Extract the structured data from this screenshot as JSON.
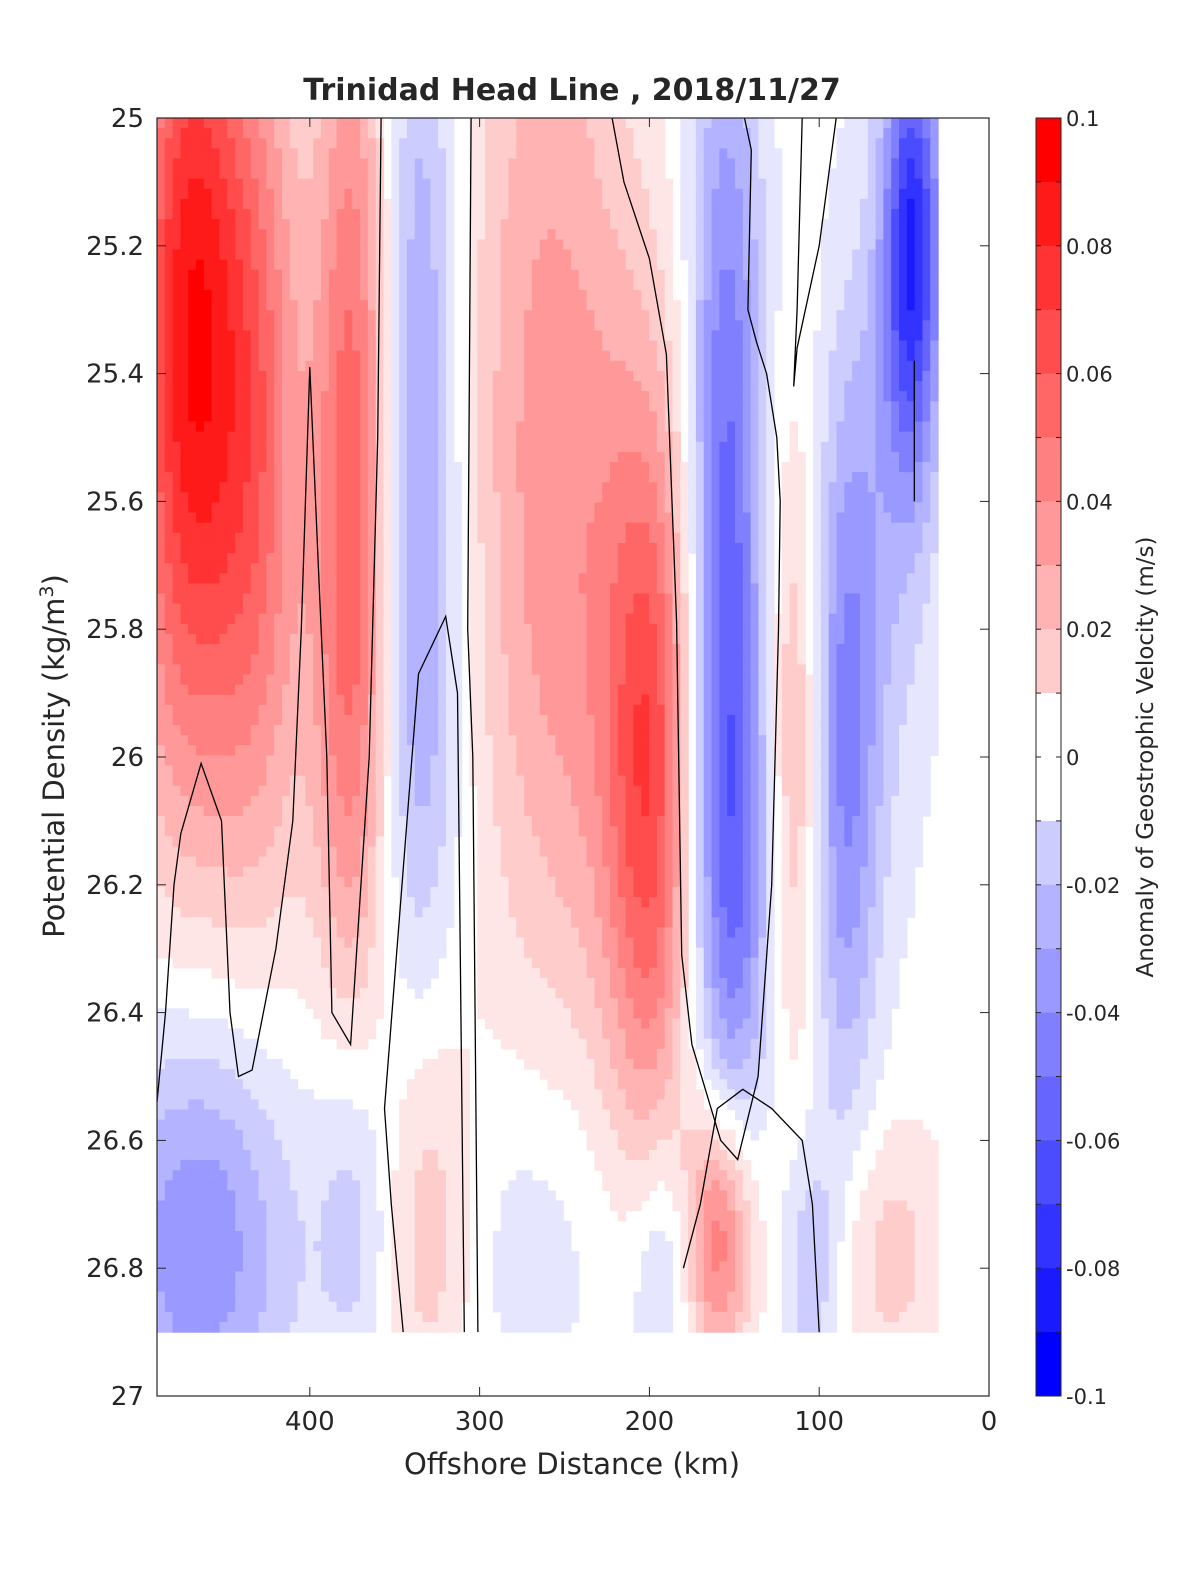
{
  "chart_data": {
    "type": "heatmap",
    "subtype": "filled-contour",
    "title": "Trinidad Head Line , 2018/11/27",
    "xlabel": "Offshore Distance (km)",
    "ylabel_main": "Potential Density (kg/m",
    "ylabel_sup": "3",
    "ylabel_close": ")",
    "colorbar_label": "Anomaly of Geostrophic Velocity (m/s)",
    "x_ticks": [
      "400",
      "300",
      "200",
      "100",
      "0"
    ],
    "x_tick_values": [
      400,
      300,
      200,
      100,
      0
    ],
    "xlim": [
      490,
      0
    ],
    "x_reversed": true,
    "y_ticks": [
      "25",
      "25.2",
      "25.4",
      "25.6",
      "25.8",
      "26",
      "26.2",
      "26.4",
      "26.6",
      "26.8",
      "27"
    ],
    "y_tick_values": [
      25,
      25.2,
      25.4,
      25.6,
      25.8,
      26,
      26.2,
      26.4,
      26.6,
      26.8,
      27
    ],
    "ylim": [
      25,
      27
    ],
    "y_reversed": true,
    "colorbar_ticks": [
      "0.1",
      "0.08",
      "0.06",
      "0.04",
      "0.02",
      "0",
      "-0.02",
      "-0.04",
      "-0.06",
      "-0.08",
      "-0.1"
    ],
    "colorbar_tick_values": [
      0.1,
      0.08,
      0.06,
      0.04,
      0.02,
      0,
      -0.02,
      -0.04,
      -0.06,
      -0.08,
      -0.1
    ],
    "clim": [
      -0.1,
      0.1
    ],
    "contour_step": 0.01,
    "colormap": "blue-white-red",
    "colors": {
      "positive": "#ff0000",
      "negative": "#0000ff",
      "neutral": "#ffffff",
      "zero_contour": "#000000"
    },
    "data_bottom_density": 26.9,
    "grid": false,
    "features": [
      {
        "x": 470,
        "y": 25.25,
        "value": 0.075,
        "sx": 22,
        "sy": 0.45
      },
      {
        "x": 460,
        "y": 25.7,
        "value": 0.03,
        "sx": 45,
        "sy": 0.45
      },
      {
        "x": 430,
        "y": 25.4,
        "value": 0.035,
        "sx": 18,
        "sy": 0.5
      },
      {
        "x": 375,
        "y": 25.4,
        "value": 0.05,
        "sx": 16,
        "sy": 0.5
      },
      {
        "x": 375,
        "y": 26.0,
        "value": 0.025,
        "sx": 16,
        "sy": 0.35
      },
      {
        "x": 335,
        "y": 25.4,
        "value": -0.035,
        "sx": 16,
        "sy": 0.55
      },
      {
        "x": 335,
        "y": 26.0,
        "value": -0.015,
        "sx": 20,
        "sy": 0.4
      },
      {
        "x": 260,
        "y": 25.3,
        "value": 0.03,
        "sx": 35,
        "sy": 0.55
      },
      {
        "x": 230,
        "y": 25.9,
        "value": 0.025,
        "sx": 45,
        "sy": 0.45
      },
      {
        "x": 200,
        "y": 26.05,
        "value": 0.055,
        "sx": 18,
        "sy": 0.4
      },
      {
        "x": 155,
        "y": 25.6,
        "value": -0.06,
        "sx": 16,
        "sy": 0.55
      },
      {
        "x": 150,
        "y": 26.2,
        "value": -0.035,
        "sx": 18,
        "sy": 0.3
      },
      {
        "x": 115,
        "y": 26.0,
        "value": 0.03,
        "sx": 12,
        "sy": 0.35
      },
      {
        "x": 85,
        "y": 26.0,
        "value": -0.045,
        "sx": 14,
        "sy": 0.4
      },
      {
        "x": 45,
        "y": 25.2,
        "value": -0.08,
        "sx": 12,
        "sy": 0.25
      },
      {
        "x": 60,
        "y": 25.6,
        "value": -0.02,
        "sx": 20,
        "sy": 0.4
      },
      {
        "x": 465,
        "y": 26.75,
        "value": -0.045,
        "sx": 40,
        "sy": 0.25
      },
      {
        "x": 330,
        "y": 26.7,
        "value": 0.025,
        "sx": 18,
        "sy": 0.25
      },
      {
        "x": 375,
        "y": 26.7,
        "value": -0.02,
        "sx": 15,
        "sy": 0.2
      },
      {
        "x": 160,
        "y": 26.75,
        "value": 0.06,
        "sx": 15,
        "sy": 0.15
      },
      {
        "x": 265,
        "y": 26.75,
        "value": -0.012,
        "sx": 35,
        "sy": 0.2
      },
      {
        "x": 190,
        "y": 26.8,
        "value": -0.025,
        "sx": 15,
        "sy": 0.15
      },
      {
        "x": 60,
        "y": 26.78,
        "value": 0.02,
        "sx": 25,
        "sy": 0.15
      },
      {
        "x": 105,
        "y": 26.8,
        "value": -0.025,
        "sx": 12,
        "sy": 0.15
      }
    ],
    "zero_contours": [
      [
        [
          490,
          26.54
        ],
        [
          485,
          26.4
        ],
        [
          480,
          26.2
        ],
        [
          476,
          26.12
        ],
        [
          464,
          26.01
        ],
        [
          452,
          26.1
        ],
        [
          447,
          26.4
        ],
        [
          442,
          26.5
        ],
        [
          434,
          26.49
        ],
        [
          420,
          26.3
        ],
        [
          410,
          26.1
        ],
        [
          405,
          25.8
        ],
        [
          400,
          25.39
        ],
        [
          395,
          25.7
        ],
        [
          390,
          26.0
        ],
        [
          387,
          26.4
        ],
        [
          376,
          26.45
        ],
        [
          365,
          26.0
        ],
        [
          360,
          25.5
        ],
        [
          358,
          25.0
        ]
      ],
      [
        [
          345,
          26.9
        ],
        [
          352,
          26.7
        ],
        [
          356,
          26.55
        ],
        [
          336,
          25.87
        ],
        [
          320,
          25.78
        ],
        [
          313,
          25.9
        ],
        [
          309,
          26.9
        ]
      ],
      [
        [
          301,
          26.9
        ],
        [
          304,
          26.0
        ],
        [
          307,
          25.8
        ],
        [
          305,
          25.0
        ]
      ],
      [
        [
          222,
          25.0
        ],
        [
          215,
          25.1
        ],
        [
          200,
          25.22
        ],
        [
          190,
          25.37
        ],
        [
          184,
          25.79
        ],
        [
          181,
          26.31
        ],
        [
          175,
          26.45
        ],
        [
          158,
          26.6
        ],
        [
          148,
          26.63
        ],
        [
          136,
          26.5
        ],
        [
          128,
          26.2
        ],
        [
          124,
          25.8
        ],
        [
          123,
          25.6
        ],
        [
          125,
          25.5
        ],
        [
          131,
          25.4
        ],
        [
          137,
          25.35
        ],
        [
          142,
          25.3
        ],
        [
          140,
          25.05
        ],
        [
          144,
          25.0
        ]
      ],
      [
        [
          110,
          25.0
        ],
        [
          113,
          25.3
        ],
        [
          115,
          25.42
        ],
        [
          113,
          25.36
        ],
        [
          100,
          25.2
        ],
        [
          90,
          25.0
        ]
      ],
      [
        [
          100,
          26.9
        ],
        [
          104,
          26.7
        ],
        [
          110,
          26.6
        ],
        [
          128,
          26.55
        ],
        [
          145,
          26.52
        ],
        [
          160,
          26.55
        ],
        [
          170,
          26.7
        ],
        [
          180,
          26.8
        ]
      ],
      [
        [
          44,
          25.38
        ],
        [
          44,
          25.6
        ]
      ]
    ]
  }
}
